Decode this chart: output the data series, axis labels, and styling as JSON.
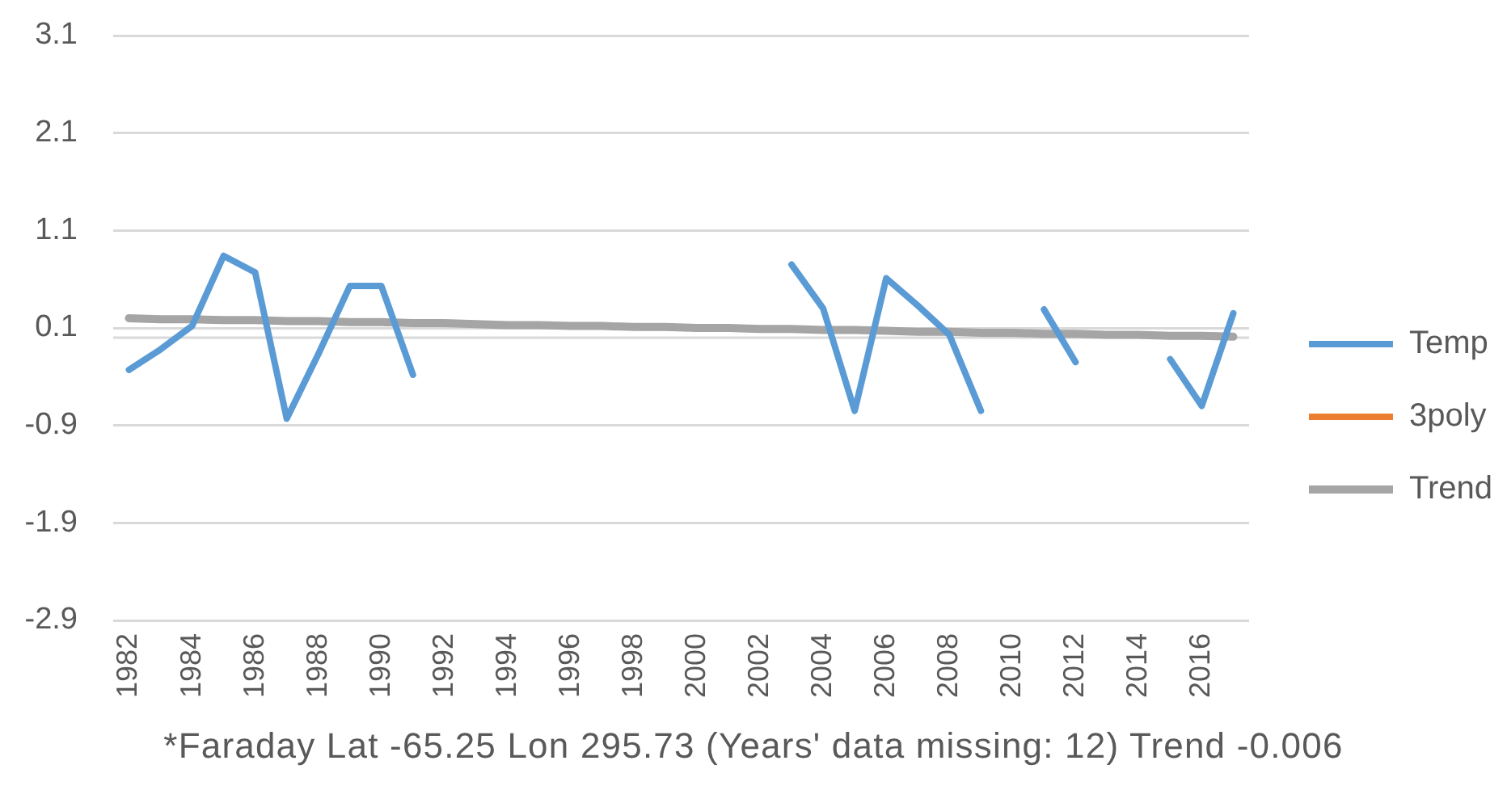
{
  "chart_data": {
    "type": "line",
    "categories": [
      "1982",
      null,
      "1984",
      null,
      "1986",
      null,
      "1988",
      null,
      "1990",
      null,
      "1992",
      null,
      "1994",
      null,
      "1996",
      null,
      "1998",
      null,
      "2000",
      null,
      "2002",
      null,
      "2004",
      null,
      "2006",
      null,
      "2008",
      null,
      "2010",
      null,
      "2012",
      null,
      "2014",
      null,
      "2016",
      null
    ],
    "series": [
      {
        "name": "Temp",
        "color": "#5b9bd5",
        "values": [
          -0.33,
          -0.12,
          0.12,
          0.84,
          0.67,
          -0.83,
          -0.17,
          0.53,
          0.53,
          -0.38,
          null,
          null,
          null,
          null,
          null,
          null,
          null,
          null,
          null,
          null,
          null,
          0.75,
          0.3,
          -0.75,
          0.61,
          0.33,
          0.03,
          -0.75,
          null,
          0.29,
          -0.25,
          null,
          null,
          -0.22,
          -0.7,
          0.25
        ]
      },
      {
        "name": "3poly",
        "color": "#ed7d31",
        "values": [
          null,
          null,
          null,
          null,
          null,
          null,
          null,
          null,
          null,
          null,
          null,
          null,
          null,
          null,
          null,
          null,
          null,
          null,
          null,
          null,
          null,
          null,
          null,
          null,
          null,
          null,
          null,
          null,
          null,
          null,
          null,
          null,
          null,
          null,
          null,
          null
        ]
      },
      {
        "name": "Trend",
        "color": "#a5a5a5",
        "values": [
          0.2,
          0.19,
          0.19,
          0.18,
          0.18,
          0.17,
          0.17,
          0.16,
          0.16,
          0.15,
          0.15,
          0.14,
          0.13,
          0.13,
          0.12,
          0.12,
          0.11,
          0.11,
          0.1,
          0.1,
          0.09,
          0.09,
          0.08,
          0.08,
          0.07,
          0.06,
          0.06,
          0.05,
          0.05,
          0.04,
          0.04,
          0.03,
          0.03,
          0.02,
          0.02,
          0.01
        ]
      }
    ],
    "ylim": [
      -2.9,
      3.1
    ],
    "yticks": [
      -2.9,
      -1.9,
      -0.9,
      0.1,
      1.1,
      2.1,
      3.1
    ],
    "grid": "y",
    "legend": "right",
    "marker": "none",
    "line_style": "solid",
    "ref_lines": [
      {
        "axis": "y",
        "value": 0,
        "color": "#d9d9d9"
      }
    ],
    "annotations": [
      "*Faraday Lat -65.25 Lon 295.73 (Years' data missing: 12) Trend -0.006"
    ]
  }
}
